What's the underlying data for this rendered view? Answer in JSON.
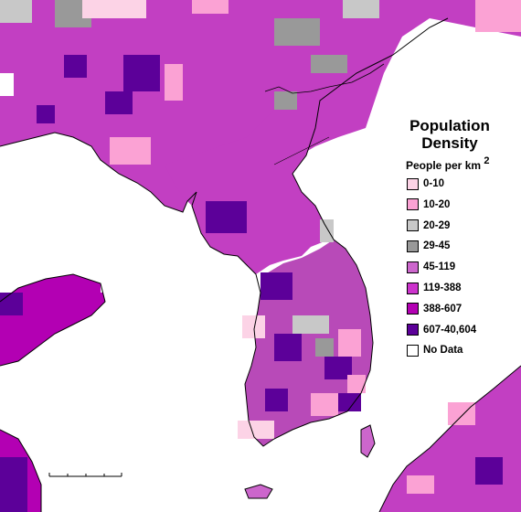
{
  "legend": {
    "title_line1": "Population",
    "title_line2": "Density",
    "unit": "People per km",
    "unit_sup": "2",
    "items": [
      {
        "label": "0-10",
        "color": "#fcd3e6"
      },
      {
        "label": "10-20",
        "color": "#fba2d4"
      },
      {
        "label": "20-29",
        "color": "#c8c8c8"
      },
      {
        "label": "29-45",
        "color": "#999999"
      },
      {
        "label": "45-119",
        "color": "#cc66cc"
      },
      {
        "label": "119-388",
        "color": "#cc33cc"
      },
      {
        "label": "388-607",
        "color": "#b300b3"
      },
      {
        "label": "607-40,604",
        "color": "#5c0099"
      },
      {
        "label": "No Data",
        "color": "#ffffff"
      }
    ]
  },
  "map": {
    "sea_color": "#ffffff",
    "coastline_color": "#000000"
  }
}
